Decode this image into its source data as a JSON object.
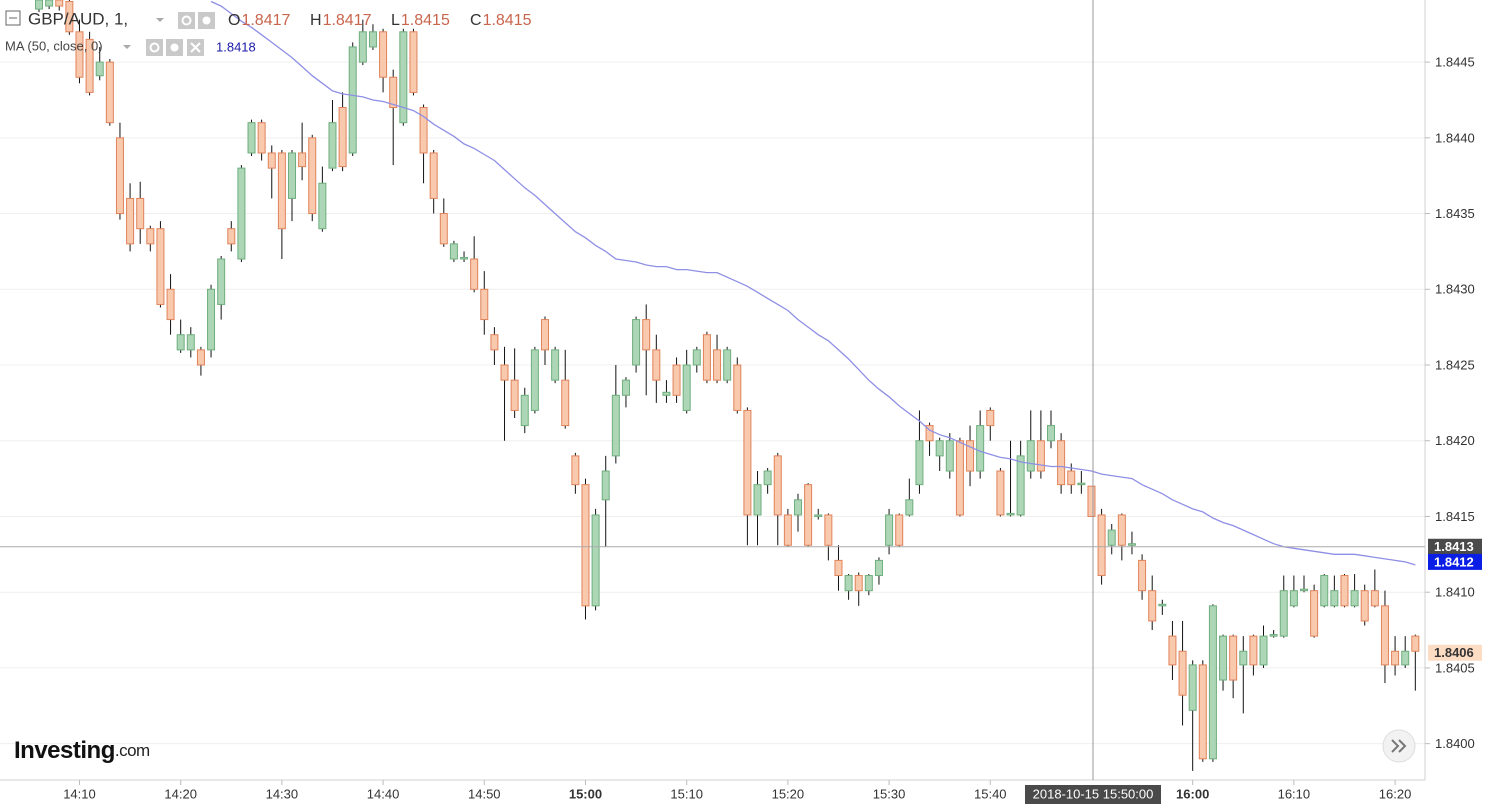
{
  "chart_data": {
    "type": "candlestick",
    "title": "GBP/AUD, 1,",
    "legend": {
      "ohlc": [
        {
          "key": "O",
          "value": "1.8417"
        },
        {
          "key": "H",
          "value": "1.8417"
        },
        {
          "key": "L",
          "value": "1.8415"
        },
        {
          "key": "C",
          "value": "1.8415"
        }
      ],
      "ma_label": "MA (50, close, 0)",
      "ma_value": "1.8418"
    },
    "logo": {
      "name": "Investing",
      "suffix": ".com"
    },
    "up_color": "#acd6b5",
    "up_stroke": "#6fae7e",
    "down_color": "#f9c9ae",
    "down_stroke": "#e0835a",
    "wick_color": "#111111",
    "categories": [
      null,
      null,
      null,
      null,
      "14:10",
      null,
      null,
      null,
      null,
      null,
      null,
      null,
      null,
      null,
      "14:20",
      null,
      null,
      null,
      null,
      null,
      null,
      null,
      null,
      null,
      "14:30",
      null,
      null,
      null,
      null,
      null,
      null,
      null,
      null,
      null,
      "14:40",
      null,
      null,
      null,
      null,
      null,
      null,
      null,
      null,
      null,
      "14:50",
      null,
      null,
      null,
      null,
      null,
      null,
      null,
      null,
      null,
      "15:00",
      null,
      null,
      null,
      null,
      null,
      null,
      null,
      null,
      null,
      "15:10",
      null,
      null,
      null,
      null,
      null,
      null,
      null,
      null,
      null,
      "15:20",
      null,
      null,
      null,
      null,
      null,
      null,
      null,
      null,
      null,
      "15:30",
      null,
      null,
      null,
      null,
      null,
      null,
      null,
      null,
      null,
      "15:40",
      null,
      null,
      null,
      null,
      null,
      null,
      null,
      null,
      null,
      null,
      null,
      null,
      null,
      null,
      null,
      null,
      null,
      null,
      null,
      "16:00",
      null,
      null,
      null,
      null,
      null,
      null,
      null,
      null,
      null,
      "16:10",
      null,
      null,
      null,
      null,
      null,
      null,
      null,
      null,
      null,
      "16:20",
      null,
      null
    ],
    "open": [
      1.84485,
      1.84487,
      1.84491,
      1.8449,
      1.8447,
      1.84465,
      1.84441,
      1.8445,
      1.844,
      1.8436,
      1.8436,
      1.8434,
      1.8434,
      1.843,
      1.8426,
      1.8426,
      1.8426,
      1.8426,
      1.8429,
      1.8434,
      1.8432,
      1.8439,
      1.8441,
      1.8439,
      1.8439,
      1.8436,
      1.8439,
      1.844,
      1.8434,
      1.8438,
      1.8442,
      1.8439,
      1.8445,
      1.8446,
      1.8447,
      1.8444,
      1.8441,
      1.8447,
      1.8442,
      1.8439,
      1.8435,
      1.8432,
      1.8432,
      1.8432,
      1.843,
      1.8427,
      1.8425,
      1.8424,
      1.8421,
      1.8422,
      1.8428,
      1.8424,
      1.8424,
      1.8419,
      1.84171,
      1.84091,
      1.84161,
      1.8419,
      1.8423,
      1.8425,
      1.8428,
      1.8426,
      1.8423,
      1.8425,
      1.8422,
      1.8425,
      1.8427,
      1.8426,
      1.8424,
      1.8425,
      1.8422,
      1.84151,
      1.84171,
      1.8419,
      1.84151,
      1.84151,
      1.84171,
      1.8415,
      1.84151,
      1.84121,
      1.84101,
      1.84111,
      1.84101,
      1.84111,
      1.84131,
      1.84151,
      1.84151,
      1.84171,
      1.8421,
      1.8419,
      1.8418,
      1.842,
      1.842,
      1.8418,
      1.8422,
      1.8418,
      1.84151,
      1.84151,
      1.8418,
      1.842,
      1.842,
      1.842,
      1.8418,
      1.84171,
      1.8417,
      1.84151,
      1.84131,
      1.84151,
      1.84131,
      1.84121,
      1.84101,
      1.84091,
      1.84071,
      1.84061,
      1.84022,
      1.84052,
      1.8399,
      1.84042,
      1.84071,
      1.84052,
      1.84071,
      1.84052,
      1.84071,
      1.84071,
      1.84091,
      1.84101,
      1.84101,
      1.84091,
      1.84091,
      1.84111,
      1.84091,
      1.84101,
      1.84101,
      1.84091,
      1.84061,
      1.84052,
      1.84071
    ],
    "high": [
      1.84495,
      1.84495,
      1.84494,
      1.84493,
      1.84478,
      1.8447,
      1.8446,
      1.84452,
      1.8441,
      1.8437,
      1.84371,
      1.84342,
      1.84345,
      1.8431,
      1.8428,
      1.84275,
      1.84262,
      1.84303,
      1.84322,
      1.84345,
      1.84382,
      1.84412,
      1.84412,
      1.84395,
      1.84392,
      1.84392,
      1.8441,
      1.84402,
      1.84381,
      1.84425,
      1.8443,
      1.84463,
      1.84478,
      1.84475,
      1.84472,
      1.84445,
      1.84472,
      1.84472,
      1.84422,
      1.84392,
      1.8436,
      1.84332,
      1.84325,
      1.84335,
      1.84312,
      1.84275,
      1.84262,
      1.84261,
      1.84235,
      1.84262,
      1.84282,
      1.84262,
      1.8426,
      1.84192,
      1.84175,
      1.84155,
      1.8419,
      1.8425,
      1.84242,
      1.84282,
      1.8429,
      1.8427,
      1.8424,
      1.84255,
      1.8426,
      1.84262,
      1.84272,
      1.8427,
      1.84262,
      1.84255,
      1.84222,
      1.8418,
      1.84182,
      1.84192,
      1.84155,
      1.84165,
      1.84172,
      1.84155,
      1.84152,
      1.84131,
      1.84112,
      1.84113,
      1.84112,
      1.84123,
      1.84155,
      1.84152,
      1.84175,
      1.8422,
      1.84212,
      1.84202,
      1.84205,
      1.84202,
      1.8421,
      1.8422,
      1.84222,
      1.84182,
      1.842,
      1.842,
      1.8422,
      1.8422,
      1.8422,
      1.84205,
      1.84185,
      1.8418,
      1.8417,
      1.84155,
      1.84145,
      1.84152,
      1.8414,
      1.84125,
      1.84111,
      1.84095,
      1.84081,
      1.84081,
      1.84055,
      1.84055,
      1.84092,
      1.84072,
      1.84072,
      1.84071,
      1.84072,
      1.84078,
      1.84075,
      1.84111,
      1.84111,
      1.84111,
      1.84105,
      1.84112,
      1.84111,
      1.84112,
      1.84112,
      1.84105,
      1.84115,
      1.84101,
      1.84071,
      1.84071,
      1.84072
    ],
    "low": [
      1.84483,
      1.84485,
      1.84484,
      1.84468,
      1.84436,
      1.84428,
      1.84438,
      1.84408,
      1.84346,
      1.84325,
      1.8433,
      1.84325,
      1.84288,
      1.8427,
      1.84258,
      1.84255,
      1.84243,
      1.84255,
      1.8428,
      1.84325,
      1.84318,
      1.84388,
      1.84385,
      1.8436,
      1.8432,
      1.84345,
      1.84372,
      1.84345,
      1.84338,
      1.84378,
      1.84378,
      1.84388,
      1.84448,
      1.84458,
      1.8443,
      1.84382,
      1.84408,
      1.84428,
      1.8437,
      1.8435,
      1.84328,
      1.84318,
      1.84318,
      1.84298,
      1.8427,
      1.8425,
      1.842,
      1.84215,
      1.84205,
      1.84218,
      1.8425,
      1.84238,
      1.84208,
      1.84165,
      1.84082,
      1.84088,
      1.8413,
      1.84185,
      1.84222,
      1.84245,
      1.8423,
      1.84225,
      1.84225,
      1.84225,
      1.84218,
      1.84245,
      1.84238,
      1.84238,
      1.84238,
      1.84218,
      1.84131,
      1.84131,
      1.84165,
      1.84131,
      1.8413,
      1.8414,
      1.8413,
      1.84148,
      1.84121,
      1.84101,
      1.84095,
      1.84091,
      1.84098,
      1.84105,
      1.84125,
      1.8413,
      1.8415,
      1.84165,
      1.8419,
      1.8418,
      1.84175,
      1.8415,
      1.8417,
      1.84175,
      1.842,
      1.8415,
      1.8415,
      1.8415,
      1.84175,
      1.84175,
      1.84195,
      1.84165,
      1.84165,
      1.84165,
      1.8415,
      1.84105,
      1.84125,
      1.84121,
      1.84125,
      1.84095,
      1.84075,
      1.84085,
      1.84042,
      1.84012,
      1.83982,
      1.83988,
      1.83988,
      1.84035,
      1.8403,
      1.8402,
      1.84045,
      1.8405,
      1.8407,
      1.8407,
      1.8409,
      1.841,
      1.8407,
      1.8409,
      1.8409,
      1.8409,
      1.8409,
      1.84078,
      1.8409,
      1.8404,
      1.84045,
      1.8405,
      1.84035
    ],
    "close": [
      1.84491,
      1.84491,
      1.84487,
      1.8447,
      1.8444,
      1.8443,
      1.8445,
      1.8441,
      1.8435,
      1.8433,
      1.8434,
      1.8433,
      1.8429,
      1.8428,
      1.8427,
      1.8427,
      1.8425,
      1.843,
      1.8432,
      1.8433,
      1.8438,
      1.8441,
      1.8439,
      1.8438,
      1.8434,
      1.8439,
      1.84381,
      1.8435,
      1.8437,
      1.8441,
      1.84381,
      1.8446,
      1.8447,
      1.8447,
      1.8444,
      1.8442,
      1.8447,
      1.8443,
      1.8439,
      1.8436,
      1.8433,
      1.8433,
      1.84321,
      1.843,
      1.8428,
      1.8426,
      1.8424,
      1.8422,
      1.8423,
      1.8426,
      1.8426,
      1.8426,
      1.8421,
      1.84171,
      1.84091,
      1.84151,
      1.8418,
      1.8423,
      1.8424,
      1.8428,
      1.8426,
      1.8424,
      1.84232,
      1.8423,
      1.8425,
      1.8426,
      1.8424,
      1.8424,
      1.8426,
      1.8422,
      1.84151,
      1.84171,
      1.8418,
      1.84151,
      1.84131,
      1.84161,
      1.84131,
      1.84151,
      1.84131,
      1.84111,
      1.84111,
      1.84101,
      1.84111,
      1.84121,
      1.84151,
      1.84131,
      1.84161,
      1.842,
      1.842,
      1.842,
      1.842,
      1.84151,
      1.8418,
      1.8421,
      1.8421,
      1.84151,
      1.84152,
      1.8419,
      1.842,
      1.8418,
      1.8421,
      1.84171,
      1.84171,
      1.84172,
      1.8415,
      1.84111,
      1.84141,
      1.84131,
      1.84132,
      1.84101,
      1.84081,
      1.84092,
      1.84052,
      1.84032,
      1.84052,
      1.8399,
      1.84091,
      1.84071,
      1.84042,
      1.84061,
      1.84052,
      1.84071,
      1.84072,
      1.84101,
      1.84101,
      1.84102,
      1.84071,
      1.84111,
      1.84101,
      1.84091,
      1.84101,
      1.84081,
      1.84091,
      1.84052,
      1.84052,
      1.84061,
      1.84061
    ],
    "ma": {
      "name": "MA (50, close, 0)",
      "color": "#8f8fe6",
      "values": [
        null,
        null,
        null,
        null,
        null,
        null,
        null,
        null,
        null,
        null,
        null,
        null,
        null,
        null,
        null,
        null,
        null,
        1.8449,
        1.84487,
        1.84482,
        1.84477,
        1.84473,
        1.84468,
        1.84463,
        1.84458,
        1.84453,
        1.84447,
        1.84441,
        1.84436,
        1.84431,
        1.84429,
        1.84428,
        1.84427,
        1.84425,
        1.84424,
        1.84422,
        1.8442,
        1.84418,
        1.84414,
        1.84409,
        1.84405,
        1.84401,
        1.84396,
        1.84393,
        1.84389,
        1.84385,
        1.84379,
        1.84373,
        1.84367,
        1.84362,
        1.84356,
        1.8435,
        1.84344,
        1.84338,
        1.84334,
        1.84329,
        1.84325,
        1.8432,
        1.84319,
        1.84318,
        1.84316,
        1.84315,
        1.84315,
        1.84313,
        1.84313,
        1.84312,
        1.84311,
        1.84311,
        1.84308,
        1.84305,
        1.84302,
        1.84298,
        1.84294,
        1.8429,
        1.84286,
        1.8428,
        1.84275,
        1.8427,
        1.84266,
        1.8426,
        1.84254,
        1.84247,
        1.8424,
        1.84234,
        1.84229,
        1.84223,
        1.84218,
        1.84213,
        1.84207,
        1.84204,
        1.84202,
        1.84199,
        1.84196,
        1.84193,
        1.84191,
        1.84189,
        1.84188,
        1.84186,
        1.84185,
        1.84184,
        1.84183,
        1.84183,
        1.84182,
        1.84181,
        1.8418,
        1.84178,
        1.84177,
        1.84176,
        1.84175,
        1.84171,
        1.84168,
        1.84165,
        1.84161,
        1.84158,
        1.84155,
        1.84153,
        1.84149,
        1.84146,
        1.84144,
        1.84141,
        1.84138,
        1.84135,
        1.84132,
        1.8413,
        1.84129,
        1.84128,
        1.84127,
        1.84126,
        1.84125,
        1.84125,
        1.84125,
        1.84124,
        1.84123,
        1.84122,
        1.84121,
        1.8412,
        1.84118
      ]
    },
    "ylim": [
      1.83976,
      1.84491
    ],
    "yticks": [
      {
        "value": 1.84,
        "label": "1.8400"
      },
      1.8405,
      {
        "value": 1.841,
        "label": "1.8410"
      },
      1.8415,
      {
        "value": 1.842,
        "label": "1.8420"
      },
      1.8425,
      {
        "value": 1.843,
        "label": "1.8430"
      },
      1.8435,
      {
        "value": 1.844,
        "label": "1.8440"
      },
      1.8445
    ],
    "grid": true,
    "crosshair": {
      "time": "2018-10-15 15:50:00",
      "price": {
        "value": 1.8413,
        "label": "1.8413"
      }
    },
    "price_labels": [
      {
        "value": 1.8412,
        "label": "1.8412",
        "color": "#0a1ee6",
        "text_color": "#ffffff"
      },
      {
        "value": 1.8406,
        "label": "1.8406",
        "color": "#fddcc4",
        "text_color": "#333333"
      }
    ]
  }
}
